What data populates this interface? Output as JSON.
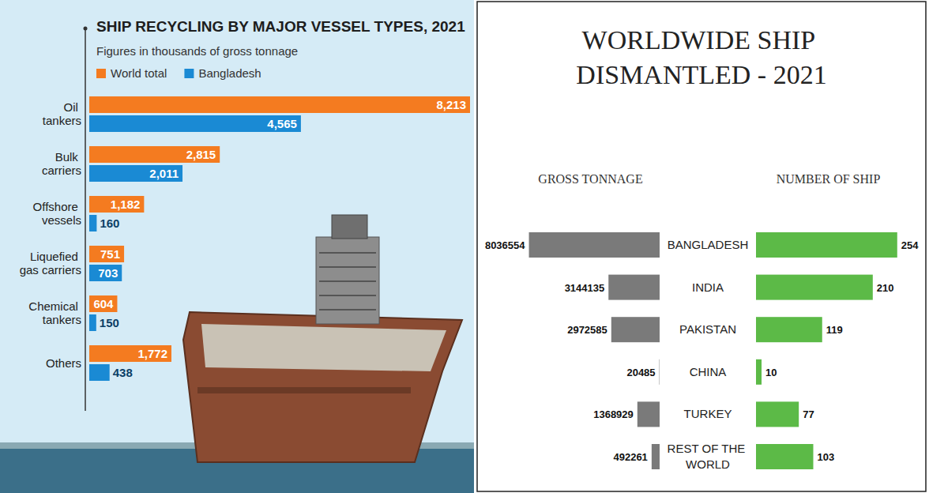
{
  "chart_data": [
    {
      "type": "bar",
      "orientation": "horizontal",
      "title": "SHIP RECYCLING BY MAJOR VESSEL TYPES, 2021",
      "subtitle": "Figures in thousands of gross tonnage",
      "categories": [
        "Oil tankers",
        "Bulk carriers",
        "Offshore vessels",
        "Liquefied gas carriers",
        "Chemical tankers",
        "Others"
      ],
      "series": [
        {
          "name": "World total",
          "color": "#f47b20",
          "values": [
            8213,
            2815,
            1182,
            751,
            604,
            1772
          ],
          "value_labels": [
            "8,213",
            "2,815",
            "1,182",
            "751",
            "604",
            "1,772"
          ]
        },
        {
          "name": "Bangladesh",
          "color": "#1a8ad4",
          "values": [
            4565,
            2011,
            160,
            703,
            150,
            438
          ],
          "value_labels": [
            "4,565",
            "2,011",
            "160",
            "703",
            "150",
            "438"
          ]
        }
      ],
      "ylim": [
        0,
        8213
      ],
      "data_labels": true,
      "legend": "top-left"
    },
    {
      "type": "bar",
      "orientation": "horizontal",
      "title": "WORLDWIDE SHIP DISMANTLED - 2021",
      "categories": [
        "BANGLADESH",
        "INDIA",
        "PAKISTAN",
        "CHINA",
        "TURKEY",
        "REST OF THE WORLD"
      ],
      "series": [
        {
          "name": "GROSS TONNAGE",
          "color": "#7a7a7a",
          "values": [
            8036554,
            3144135,
            2972585,
            20485,
            1368929,
            492261
          ]
        },
        {
          "name": "NUMBER OF SHIP",
          "color": "#5cba47",
          "values": [
            254,
            210,
            119,
            10,
            77,
            103
          ],
          "axis": "y2"
        }
      ],
      "ylim": [
        0,
        8500000
      ],
      "y2lim": [
        0,
        260
      ],
      "data_labels": true
    }
  ]
}
